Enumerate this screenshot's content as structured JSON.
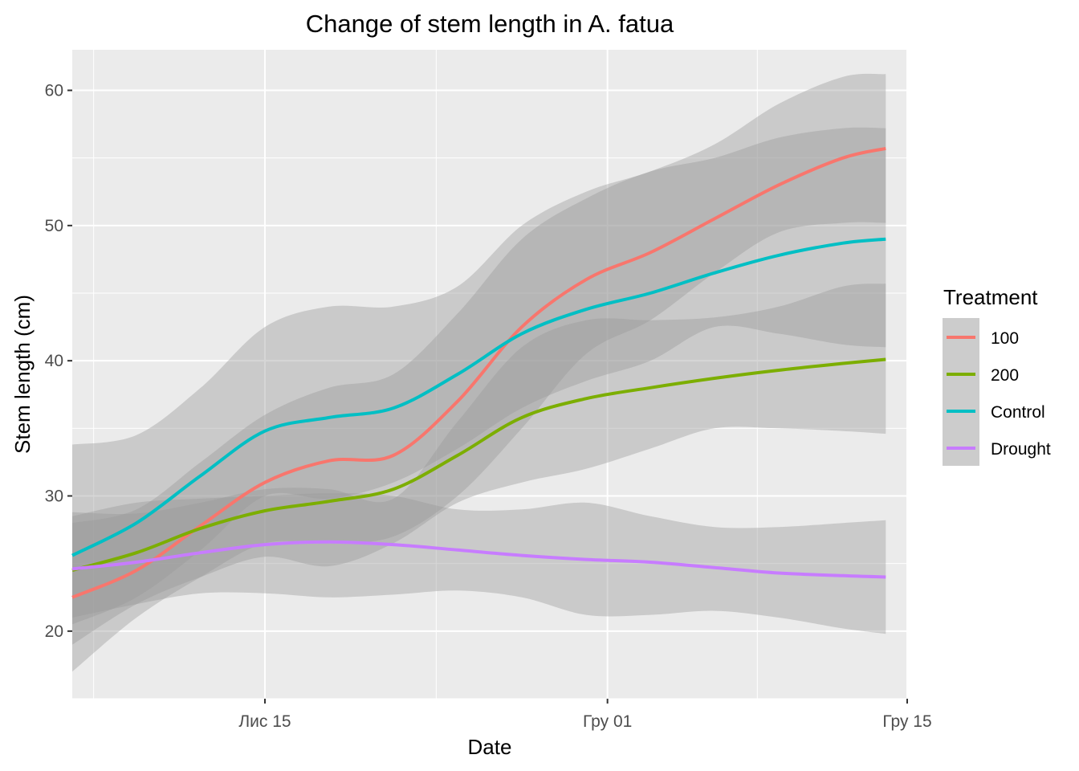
{
  "chart_data": {
    "type": "line",
    "title": "Change of stem length in A. fatua",
    "xlabel": "Date",
    "ylabel": "Stem length (cm)",
    "x_type": "date",
    "xlim": [
      "2020-11-06",
      "2020-12-15"
    ],
    "ylim": [
      15,
      63
    ],
    "x_ticks": [
      {
        "date": "2020-11-15",
        "label": "Лис 15"
      },
      {
        "date": "2020-12-01",
        "label": "Гру 01"
      },
      {
        "date": "2020-12-15",
        "label": "Гру 15"
      }
    ],
    "y_ticks": [
      20,
      30,
      40,
      50,
      60
    ],
    "grid": true,
    "legend": {
      "title": "Treatment",
      "position": "right"
    },
    "x": [
      "2020-11-06",
      "2020-11-09",
      "2020-11-12",
      "2020-11-15",
      "2020-11-18",
      "2020-11-21",
      "2020-11-24",
      "2020-11-27",
      "2020-11-30",
      "2020-12-03",
      "2020-12-06",
      "2020-12-09",
      "2020-12-12",
      "2020-12-14"
    ],
    "series": [
      {
        "name": "100",
        "color": "#F8766D",
        "values": [
          22.5,
          24.5,
          27.8,
          31.0,
          32.6,
          33.0,
          37.0,
          42.5,
          46.0,
          48.0,
          50.5,
          53.0,
          55.0,
          55.7
        ],
        "lower": [
          17.0,
          21.0,
          24.0,
          26.5,
          26.5,
          27.0,
          30.0,
          35.0,
          40.5,
          43.0,
          46.5,
          49.5,
          50.2,
          50.2
        ],
        "upper": [
          28.0,
          29.0,
          32.5,
          36.0,
          38.0,
          39.0,
          43.5,
          49.0,
          52.0,
          54.0,
          55.0,
          56.5,
          57.2,
          57.2
        ]
      },
      {
        "name": "200",
        "color": "#7CAE00",
        "values": [
          24.5,
          25.8,
          27.6,
          28.9,
          29.6,
          30.5,
          33.0,
          35.8,
          37.2,
          38.0,
          38.7,
          39.3,
          39.8,
          40.1
        ],
        "lower": [
          19.0,
          22.0,
          24.0,
          25.5,
          24.8,
          26.5,
          29.5,
          31.0,
          32.0,
          33.5,
          35.0,
          35.0,
          34.8,
          34.6
        ],
        "upper": [
          28.8,
          28.7,
          29.5,
          30.5,
          30.5,
          29.8,
          35.5,
          41.0,
          43.0,
          43.0,
          43.2,
          44.0,
          45.5,
          45.7
        ]
      },
      {
        "name": "Control",
        "color": "#00BFC4",
        "values": [
          25.6,
          28.0,
          31.5,
          34.8,
          35.8,
          36.5,
          39.0,
          42.0,
          43.8,
          45.0,
          46.5,
          47.8,
          48.7,
          49.0
        ],
        "lower": [
          20.5,
          22.5,
          26.0,
          30.0,
          29.8,
          31.0,
          33.5,
          36.5,
          38.5,
          40.0,
          42.5,
          42.0,
          41.2,
          41.0
        ],
        "upper": [
          33.8,
          34.5,
          38.0,
          42.5,
          44.0,
          44.0,
          45.5,
          50.0,
          52.5,
          54.0,
          56.0,
          59.0,
          61.0,
          61.2
        ]
      },
      {
        "name": "Drought",
        "color": "#C77CFF",
        "values": [
          24.6,
          25.1,
          25.8,
          26.4,
          26.6,
          26.4,
          26.0,
          25.6,
          25.3,
          25.1,
          24.7,
          24.3,
          24.1,
          24.0
        ],
        "lower": [
          21.0,
          22.0,
          22.8,
          22.8,
          22.5,
          22.7,
          23.0,
          22.5,
          21.2,
          21.2,
          21.5,
          21.0,
          20.2,
          19.8
        ],
        "upper": [
          28.5,
          29.5,
          29.8,
          30.0,
          30.2,
          30.0,
          29.0,
          29.0,
          29.5,
          28.5,
          27.7,
          27.7,
          28.0,
          28.2
        ]
      }
    ]
  }
}
